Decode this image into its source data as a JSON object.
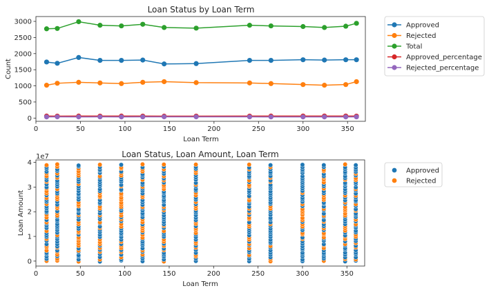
{
  "colors": {
    "approved": "#1f77b4",
    "rejected": "#ff7f0e",
    "total": "#2ca02c",
    "approved_percentage": "#d62728",
    "rejected_percentage": "#9467bd"
  },
  "chart_data": [
    {
      "type": "line",
      "title": "Loan Status by Loan Term",
      "xlabel": "Loan Term",
      "ylabel": "Count",
      "xlim": [
        0,
        370
      ],
      "ylim": [
        -100,
        3150
      ],
      "xticks": [
        "0",
        "50",
        "100",
        "150",
        "200",
        "250",
        "300",
        "350"
      ],
      "yticks": [
        "0",
        "500",
        "1000",
        "1500",
        "2000",
        "2500",
        "3000"
      ],
      "grid": false,
      "legend_position": "outside-right",
      "x": [
        12,
        24,
        48,
        72,
        96,
        120,
        144,
        180,
        240,
        264,
        300,
        324,
        348,
        360
      ],
      "series": [
        {
          "name": "Approved",
          "color_key": "approved",
          "values": [
            1740,
            1700,
            1880,
            1790,
            1790,
            1800,
            1680,
            1690,
            1790,
            1790,
            1810,
            1800,
            1810,
            1810
          ]
        },
        {
          "name": "Rejected",
          "color_key": "rejected",
          "values": [
            1020,
            1080,
            1110,
            1090,
            1070,
            1110,
            1130,
            1100,
            1090,
            1070,
            1040,
            1020,
            1040,
            1130
          ]
        },
        {
          "name": "Total",
          "color_key": "total",
          "values": [
            2770,
            2780,
            2990,
            2880,
            2860,
            2910,
            2810,
            2790,
            2880,
            2860,
            2840,
            2810,
            2850,
            2940
          ]
        },
        {
          "name": "Approved_percentage",
          "color_key": "approved_percentage",
          "values": [
            63,
            61,
            63,
            62,
            63,
            62,
            60,
            61,
            62,
            63,
            64,
            64,
            64,
            62
          ]
        },
        {
          "name": "Rejected_percentage",
          "color_key": "rejected_percentage",
          "values": [
            37,
            39,
            37,
            38,
            37,
            38,
            40,
            39,
            38,
            37,
            36,
            36,
            36,
            38
          ]
        }
      ]
    },
    {
      "type": "scatter",
      "title": "Loan Status, Loan Amount, Loan Term",
      "xlabel": "Loan Term",
      "ylabel": "Loan Amount",
      "offset_label": "1e7",
      "xlim": [
        0,
        370
      ],
      "ylim": [
        -2000000,
        41000000
      ],
      "xticks": [
        "0",
        "50",
        "100",
        "150",
        "200",
        "250",
        "300",
        "350"
      ],
      "yticks": [
        "0",
        "1",
        "2",
        "3",
        "4"
      ],
      "grid": false,
      "legend_position": "outside-right",
      "x": [
        12,
        24,
        48,
        72,
        96,
        120,
        144,
        180,
        240,
        264,
        300,
        324,
        348,
        360
      ],
      "y_range": [
        0,
        39000000
      ],
      "series": [
        {
          "name": "Approved",
          "color_key": "approved"
        },
        {
          "name": "Rejected",
          "color_key": "rejected"
        }
      ]
    }
  ]
}
